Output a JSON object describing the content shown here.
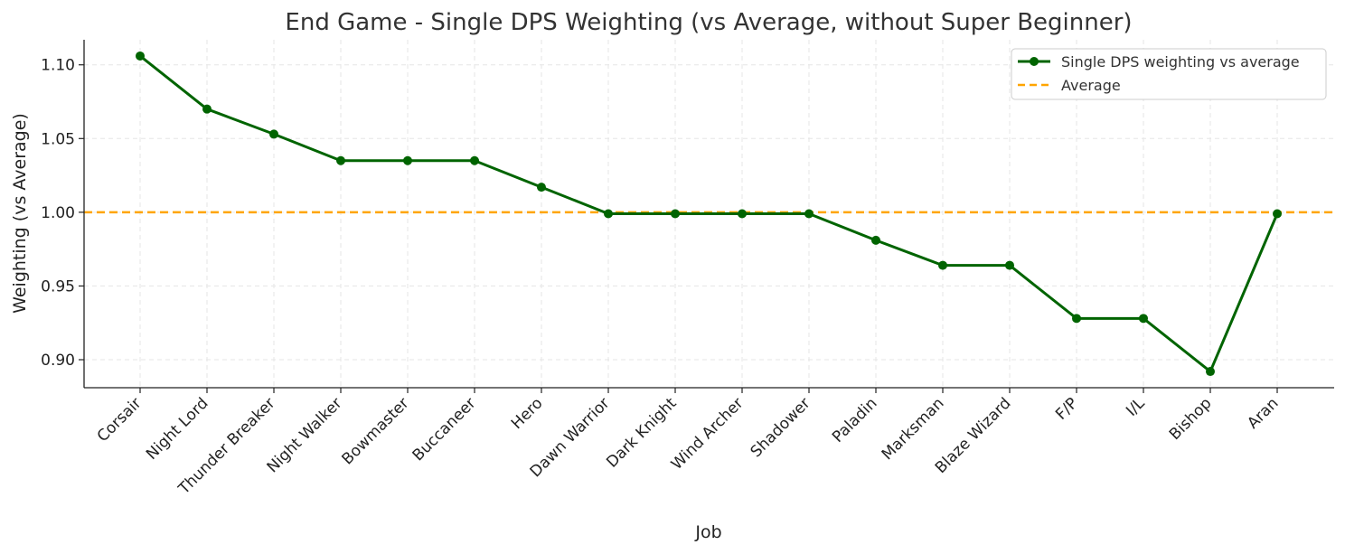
{
  "chart_data": {
    "type": "line",
    "title": "End Game - Single DPS Weighting (vs Average, without Super Beginner)",
    "xlabel": "Job",
    "ylabel": "Weighting (vs Average)",
    "categories": [
      "Corsair",
      "Night Lord",
      "Thunder Breaker",
      "Night Walker",
      "Bowmaster",
      "Buccaneer",
      "Hero",
      "Dawn Warrior",
      "Dark Knight",
      "Wind Archer",
      "Shadower",
      "Paladin",
      "Marksman",
      "Blaze Wizard",
      "F/P",
      "I/L",
      "Bishop",
      "Aran"
    ],
    "series": [
      {
        "name": "Single DPS weighting vs average",
        "color": "#006400",
        "values": [
          1.106,
          1.07,
          1.053,
          1.035,
          1.035,
          1.035,
          1.017,
          0.999,
          0.999,
          0.999,
          0.999,
          0.981,
          0.964,
          0.964,
          0.928,
          0.928,
          0.892,
          0.999
        ]
      }
    ],
    "reference_line": {
      "name": "Average",
      "value": 1.0,
      "color": "#FFA500",
      "style": "dashed"
    },
    "yticks": [
      "0.90",
      "0.95",
      "1.00",
      "1.05",
      "1.10"
    ],
    "ylim": [
      0.881,
      1.117
    ],
    "grid": true,
    "legend_position": "top-right"
  }
}
